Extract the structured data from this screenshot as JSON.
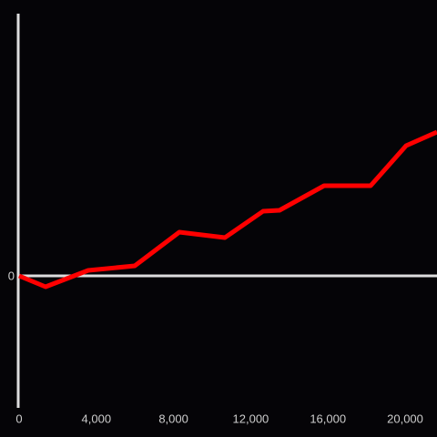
{
  "chart_data": {
    "type": "line",
    "x": [
      0,
      1370,
      3580,
      5990,
      8300,
      10660,
      12640,
      13490,
      15800,
      18210,
      20050,
      21650
    ],
    "series": [
      {
        "color": "#ff0000",
        "values": [
          0,
          -12,
          6,
          11,
          48,
          42,
          71,
          72,
          99,
          99,
          143,
          158
        ]
      }
    ],
    "xlim": [
      0,
      21650
    ],
    "xticks": [
      0,
      {
        "value": 4000,
        "label": "4,000"
      },
      {
        "value": 8000,
        "label": "8,000"
      },
      {
        "value": 12000,
        "label": "12,000"
      },
      {
        "value": 16000,
        "label": "16,000"
      },
      {
        "value": 20000,
        "label": "20,000"
      }
    ],
    "ylim": [
      -145,
      288
    ],
    "yticks": [
      0
    ]
  }
}
